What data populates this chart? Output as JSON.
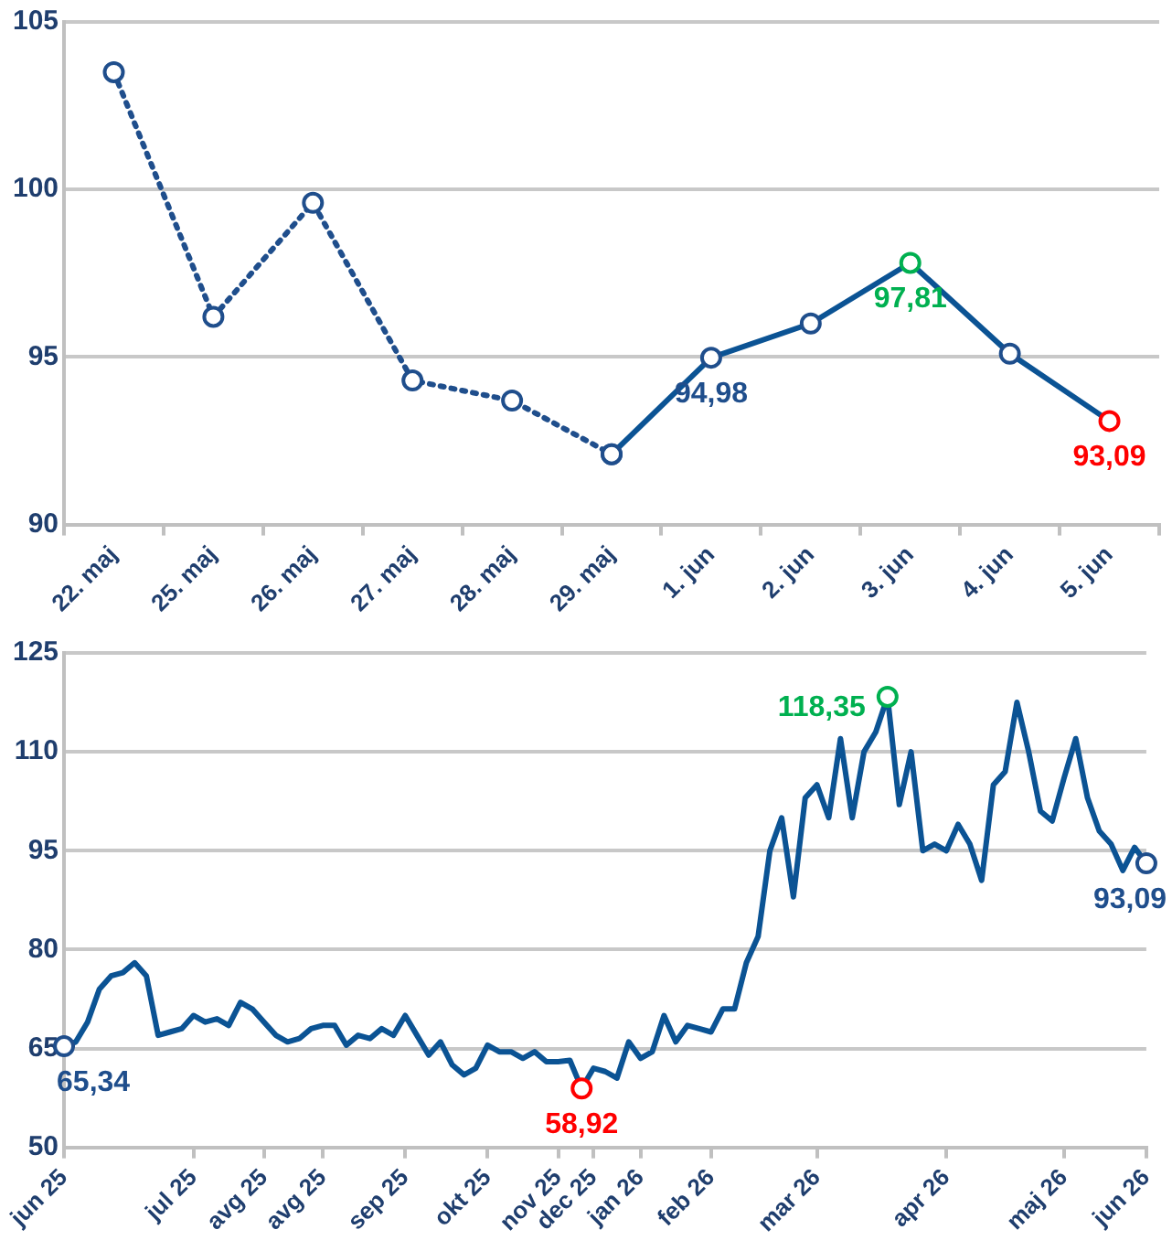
{
  "chart_data": [
    {
      "type": "line",
      "categories": [
        "22. maj",
        "25. maj",
        "26. maj",
        "27. maj",
        "28. maj",
        "29. maj",
        "1. jun",
        "2. jun",
        "3. jun",
        "4. jun",
        "5. jun"
      ],
      "series": [
        {
          "color": "#1f4e8c",
          "line_style": "dotted",
          "values": [
            103.5,
            96.2,
            99.6,
            94.3,
            93.7,
            92.1,
            null,
            null,
            null,
            null,
            null
          ],
          "colors": [
            "#1f4e8c",
            "#1f4e8c",
            "#1f4e8c",
            "#1f4e8c",
            "#1f4e8c",
            "#1f4e8c",
            null,
            null,
            null,
            null,
            null
          ]
        },
        {
          "color": "#0b5394",
          "line_style": "solid",
          "values": [
            null,
            null,
            null,
            null,
            null,
            92.1,
            94.98,
            96.0,
            97.81,
            95.1,
            93.09
          ],
          "colors": [
            null,
            null,
            null,
            null,
            null,
            "#1f4e8c",
            "#1f4e8c",
            "#1f4e8c",
            "#00b050",
            "#1f4e8c",
            "#ff0000"
          ]
        }
      ],
      "ylim": [
        90,
        105
      ],
      "yticks": [
        90,
        95,
        100,
        105
      ],
      "grid": "y",
      "marker": "circle",
      "annotations": [
        {
          "text": "94,98",
          "x": "1. jun",
          "y": 94.98
        },
        {
          "text": "97,81",
          "x": "3. jun",
          "y": 97.81
        },
        {
          "text": "93,09",
          "x": "5. jun",
          "y": 93.09
        }
      ]
    },
    {
      "type": "line",
      "categories": [
        "jun 25",
        null,
        null,
        null,
        null,
        null,
        null,
        null,
        null,
        null,
        null,
        "jul 25",
        null,
        null,
        null,
        null,
        null,
        "avg 25",
        null,
        null,
        null,
        null,
        "avg 25",
        null,
        null,
        null,
        null,
        null,
        null,
        "sep 25",
        null,
        null,
        null,
        null,
        null,
        null,
        "okt 25",
        null,
        null,
        null,
        null,
        null,
        "nov 25",
        null,
        null,
        "dec 25",
        null,
        null,
        null,
        "jan 26",
        null,
        null,
        null,
        null,
        null,
        "feb 26",
        null,
        null,
        null,
        null,
        null,
        null,
        null,
        null,
        "mar 26",
        null,
        null,
        null,
        null,
        null,
        null,
        null,
        null,
        null,
        null,
        "apr 26",
        null,
        null,
        null,
        null,
        null,
        null,
        null,
        null,
        null,
        "maj 26",
        null,
        null,
        null,
        null,
        null,
        null,
        "jun 26"
      ],
      "series": [
        {
          "color": "#0b5394",
          "values": [
            65.34,
            66,
            69,
            74,
            76,
            76.5,
            78,
            76,
            67,
            67.5,
            68,
            70,
            69,
            69.5,
            68.5,
            72,
            71,
            69,
            67,
            66,
            66.5,
            68,
            68.5,
            68.5,
            65.5,
            67,
            66.5,
            68,
            67,
            70,
            67,
            64,
            66,
            62.5,
            61,
            62,
            65.5,
            64.5,
            64.5,
            63.5,
            64.5,
            63,
            63,
            63.2,
            58.92,
            62,
            61.5,
            60.5,
            66,
            63.5,
            64.5,
            70,
            66,
            68.5,
            68,
            67.5,
            71,
            71,
            78,
            82,
            95,
            100,
            88,
            103,
            105,
            100,
            112,
            100,
            110,
            113,
            118.35,
            102,
            110,
            95,
            96,
            95,
            99,
            96,
            90.5,
            105,
            107,
            117.5,
            110,
            101,
            99.5,
            106,
            112,
            103,
            98,
            96,
            92,
            95.5,
            93.09
          ],
          "colors": [
            "#1f4e8c",
            null,
            null,
            null,
            null,
            null,
            null,
            null,
            null,
            null,
            null,
            null,
            null,
            null,
            null,
            null,
            null,
            null,
            null,
            null,
            null,
            null,
            null,
            null,
            null,
            null,
            null,
            null,
            null,
            null,
            null,
            null,
            null,
            null,
            null,
            null,
            null,
            null,
            null,
            null,
            null,
            null,
            null,
            null,
            "#ff0000",
            null,
            null,
            null,
            null,
            null,
            null,
            null,
            null,
            null,
            null,
            null,
            null,
            null,
            null,
            null,
            null,
            null,
            null,
            null,
            null,
            null,
            null,
            null,
            null,
            null,
            "#00b050",
            null,
            null,
            null,
            null,
            null,
            null,
            null,
            null,
            null,
            null,
            null,
            null,
            null,
            null,
            null,
            null,
            null,
            null,
            null,
            null,
            null,
            "#1f4e8c"
          ]
        }
      ],
      "ylim": [
        50,
        125
      ],
      "yticks": [
        50,
        65,
        80,
        95,
        110,
        125
      ],
      "grid": "y",
      "annotations": [
        "65,34",
        "58,92",
        "118,35",
        "93,09"
      ]
    }
  ]
}
